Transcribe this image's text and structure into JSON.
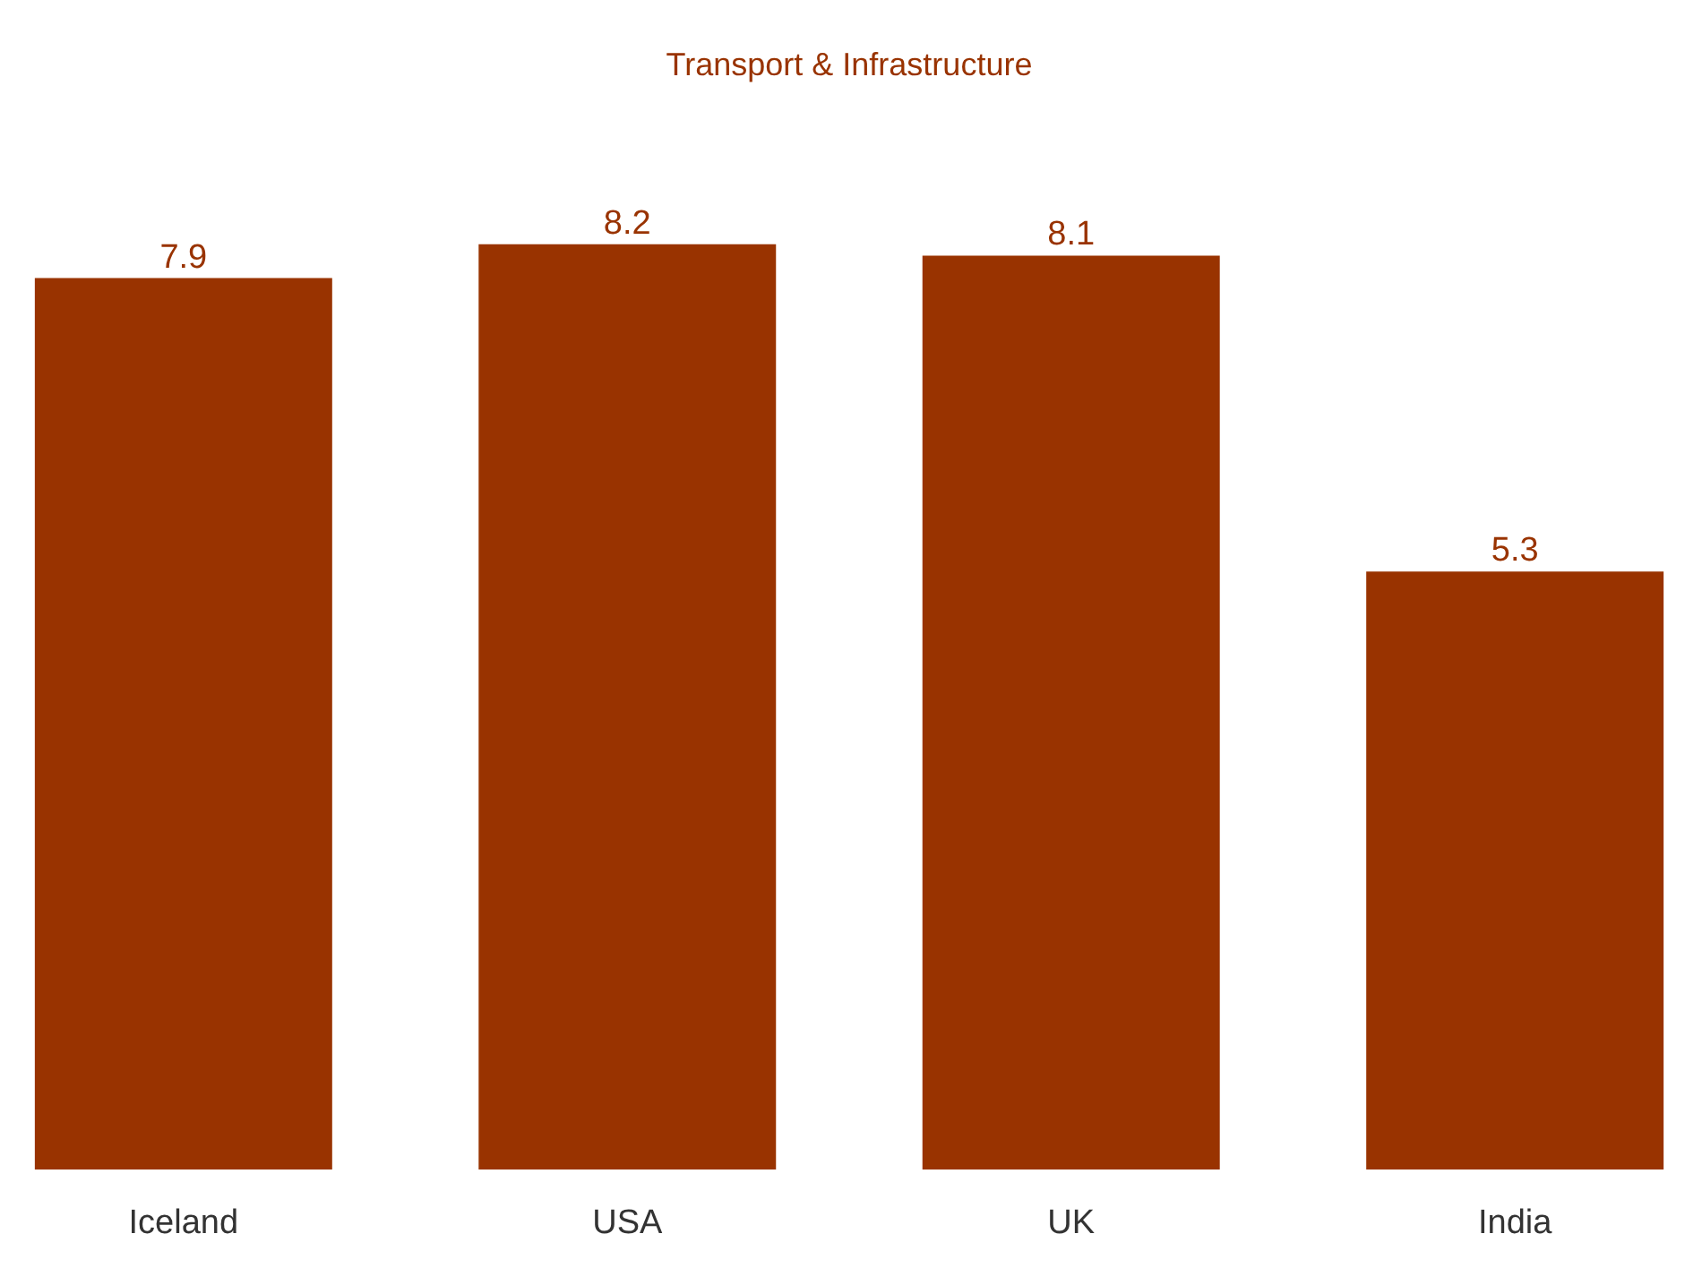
{
  "chart_data": {
    "type": "bar",
    "title": "Transport & Infrastructure",
    "categories": [
      "Iceland",
      "USA",
      "UK",
      "India"
    ],
    "values": [
      7.9,
      8.2,
      8.1,
      5.3
    ],
    "color": "#993300",
    "data_labels": true
  }
}
